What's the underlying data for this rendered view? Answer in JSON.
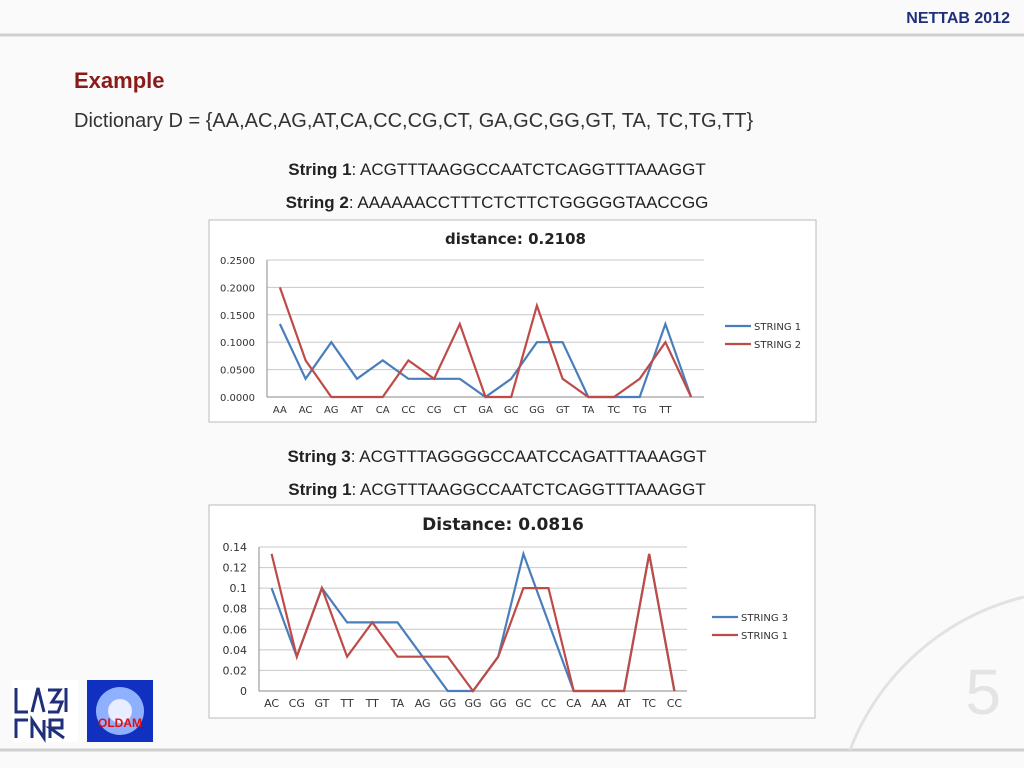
{
  "header": {
    "conference": "NETTAB 2012"
  },
  "title": "Example",
  "dictionary": "Dictionary D = {AA,AC,AG,AT,CA,CC,CG,CT, GA,GC,GG,GT, TA, TC,TG,TT}",
  "pair_1": [
    {
      "label": "String 1",
      "sequence": ": ACGTTTAAGGCCAATCTCAGGTTTAAAGGT"
    },
    {
      "label": "String 2",
      "sequence": ": AAAAAACCTTTCTCTTCTGGGGGTAACCGG"
    }
  ],
  "pair_2": [
    {
      "label": "String 3",
      "sequence": ": ACGTTTAGGGGCCAATCCAGATTTAAAGGT"
    },
    {
      "label": "String 1",
      "sequence": ": ACGTTTAAGGCCAATCTCAGGTTTAAAGGT"
    }
  ],
  "logo_text": "OLDAM",
  "page_number": "5",
  "chart_data": [
    {
      "type": "line",
      "title": "distance: 0.2108",
      "categories": [
        "AA",
        "AC",
        "AG",
        "AT",
        "CA",
        "CC",
        "CG",
        "CT",
        "GA",
        "GC",
        "GG",
        "GT",
        "TA",
        "TC",
        "TG",
        "TT",
        null
      ],
      "series": [
        {
          "name": "STRING 1",
          "color": "#4a7ebb",
          "values": [
            0.1333,
            0.0333,
            0.1,
            0.0333,
            0.0667,
            0.0333,
            0.0333,
            0.0333,
            0,
            0.0333,
            0.1,
            0.1,
            0,
            0,
            0,
            0.1333,
            0
          ]
        },
        {
          "name": "STRING 2",
          "color": "#be4b48",
          "values": [
            0.2,
            0.0667,
            0,
            0,
            0,
            0.0667,
            0.0333,
            0.1333,
            0,
            0,
            0.1667,
            0.0333,
            0,
            0,
            0.0333,
            0.1,
            0
          ]
        }
      ],
      "ylim": [
        0,
        0.25
      ],
      "yticks": [
        {
          "value": 0,
          "label": "0.0000"
        },
        {
          "value": 0.05,
          "label": "0.0500"
        },
        {
          "value": 0.1,
          "label": "0.1000"
        },
        {
          "value": 0.15,
          "label": "0.1500"
        },
        {
          "value": 0.2,
          "label": "0.2000"
        },
        {
          "value": 0.25,
          "label": "0.2500"
        }
      ],
      "grid": true,
      "legend": "right"
    },
    {
      "type": "line",
      "title": "Distance: 0.0816",
      "categories": [
        "AC",
        "CG",
        "GT",
        "TT",
        "TT",
        "TA",
        "AG",
        "GG",
        "GG",
        "GG",
        "GC",
        "CC",
        "CA",
        "AA",
        "AT",
        "TC",
        "CC"
      ],
      "series": [
        {
          "name": "STRING 3",
          "color": "#4a7ebb",
          "values": [
            0.1,
            0.0333,
            0.1,
            0.0667,
            0.0667,
            0.0667,
            0.0333,
            0,
            0,
            0.0333,
            0.1333,
            0.0667,
            0,
            0,
            0,
            0.1333,
            0
          ]
        },
        {
          "name": "STRING 1",
          "color": "#be4b48",
          "values": [
            0.1333,
            0.0333,
            0.1,
            0.0333,
            0.0667,
            0.0333,
            0.0333,
            0.0333,
            0,
            0.0333,
            0.1,
            0.1,
            0,
            0,
            0,
            0.1333,
            0
          ]
        }
      ],
      "ylim": [
        0,
        0.14
      ],
      "yticks": [
        0,
        0.02,
        0.04,
        0.06,
        0.08,
        0.1,
        0.12,
        0.14
      ],
      "grid": true,
      "legend": "right"
    }
  ]
}
